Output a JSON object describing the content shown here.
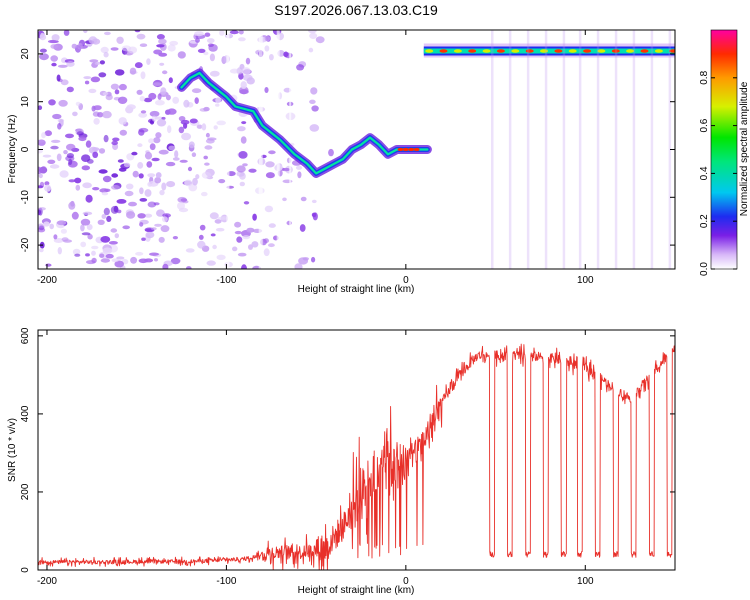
{
  "title": "S197.2026.067.13.03.C19",
  "chart_data": [
    {
      "type": "heatmap",
      "name": "spectrogram",
      "xlabel": "Height of straight line (km)",
      "ylabel": "Frequency (Hz)",
      "xlim": [
        -205,
        150
      ],
      "ylim": [
        -25,
        25
      ],
      "xticks": [
        -200,
        -100,
        0,
        100
      ],
      "yticks": [
        20,
        10,
        0,
        -10,
        -20
      ],
      "colorbar": {
        "label": "Normalized spectral amplitude",
        "range": [
          0,
          1
        ],
        "ticks": [
          0.0,
          0.2,
          0.4,
          0.6,
          0.8
        ]
      },
      "signal_track": [
        {
          "x": -125,
          "f": 13
        },
        {
          "x": -120,
          "f": 15
        },
        {
          "x": -115,
          "f": 16
        },
        {
          "x": -110,
          "f": 14
        },
        {
          "x": -100,
          "f": 11
        },
        {
          "x": -95,
          "f": 9
        },
        {
          "x": -85,
          "f": 8
        },
        {
          "x": -80,
          "f": 5
        },
        {
          "x": -70,
          "f": 2
        },
        {
          "x": -62,
          "f": -1
        },
        {
          "x": -55,
          "f": -3
        },
        {
          "x": -50,
          "f": -5
        },
        {
          "x": -45,
          "f": -4
        },
        {
          "x": -40,
          "f": -3
        },
        {
          "x": -35,
          "f": -2
        },
        {
          "x": -30,
          "f": 0
        },
        {
          "x": -25,
          "f": 1
        },
        {
          "x": -20,
          "f": 2.5
        },
        {
          "x": -15,
          "f": 1
        },
        {
          "x": -10,
          "f": -1
        },
        {
          "x": -5,
          "f": 0
        },
        {
          "x": 0,
          "f": 0
        },
        {
          "x": 5,
          "f": 0
        },
        {
          "x": 12,
          "f": 0
        }
      ],
      "carrier": {
        "x_start": 10,
        "x_end": 150,
        "f_start": 20.5,
        "f_end": 21
      }
    },
    {
      "type": "line",
      "name": "snr",
      "xlabel": "Height of straight line (km)",
      "ylabel": "SNR (10 * v/v)",
      "xlim": [
        -205,
        150
      ],
      "ylim": [
        0,
        615
      ],
      "xticks": [
        -200,
        -100,
        0,
        100
      ],
      "yticks": [
        0,
        200,
        400,
        600
      ],
      "color": "#e8302a",
      "trend": {
        "x": [
          -205,
          -120,
          -90,
          -75,
          -60,
          -45,
          -35,
          -25,
          -15,
          -5,
          5,
          15,
          20,
          30,
          40,
          60,
          80,
          100,
          115,
          125,
          135,
          150
        ],
        "y": [
          20,
          22,
          28,
          45,
          45,
          55,
          110,
          200,
          260,
          270,
          300,
          370,
          430,
          500,
          550,
          550,
          545,
          520,
          470,
          440,
          490,
          570
        ]
      },
      "dropouts_x": [
        48,
        58,
        68,
        78,
        88,
        97,
        107,
        117,
        127,
        137,
        147
      ],
      "dropout_level": 40
    }
  ]
}
